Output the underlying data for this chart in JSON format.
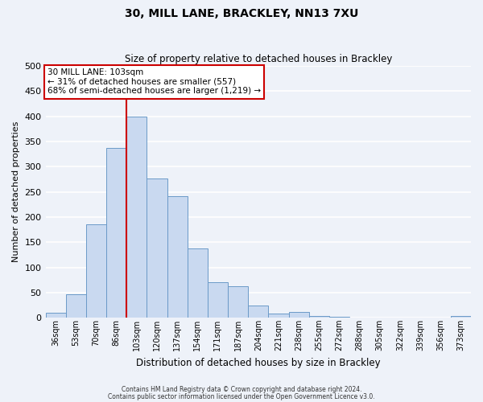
{
  "title": "30, MILL LANE, BRACKLEY, NN13 7XU",
  "subtitle": "Size of property relative to detached houses in Brackley",
  "xlabel": "Distribution of detached houses by size in Brackley",
  "ylabel": "Number of detached properties",
  "bin_labels": [
    "36sqm",
    "53sqm",
    "70sqm",
    "86sqm",
    "103sqm",
    "120sqm",
    "137sqm",
    "154sqm",
    "171sqm",
    "187sqm",
    "204sqm",
    "221sqm",
    "238sqm",
    "255sqm",
    "272sqm",
    "288sqm",
    "305sqm",
    "322sqm",
    "339sqm",
    "356sqm",
    "373sqm"
  ],
  "bar_values": [
    10,
    47,
    185,
    338,
    400,
    277,
    242,
    137,
    70,
    63,
    25,
    8,
    12,
    3,
    2,
    1,
    0,
    0,
    0,
    0,
    3
  ],
  "bar_color": "#c9d9f0",
  "bar_edge_color": "#6b9ac8",
  "vline_x": 3.5,
  "vline_color": "#cc0000",
  "ylim": [
    0,
    500
  ],
  "yticks": [
    0,
    50,
    100,
    150,
    200,
    250,
    300,
    350,
    400,
    450,
    500
  ],
  "annotation_text": "30 MILL LANE: 103sqm\n← 31% of detached houses are smaller (557)\n68% of semi-detached houses are larger (1,219) →",
  "annotation_box_facecolor": "#ffffff",
  "annotation_box_edgecolor": "#cc0000",
  "footer_line1": "Contains HM Land Registry data © Crown copyright and database right 2024.",
  "footer_line2": "Contains public sector information licensed under the Open Government Licence v3.0.",
  "background_color": "#eef2f9",
  "grid_color": "#d8e0ee"
}
